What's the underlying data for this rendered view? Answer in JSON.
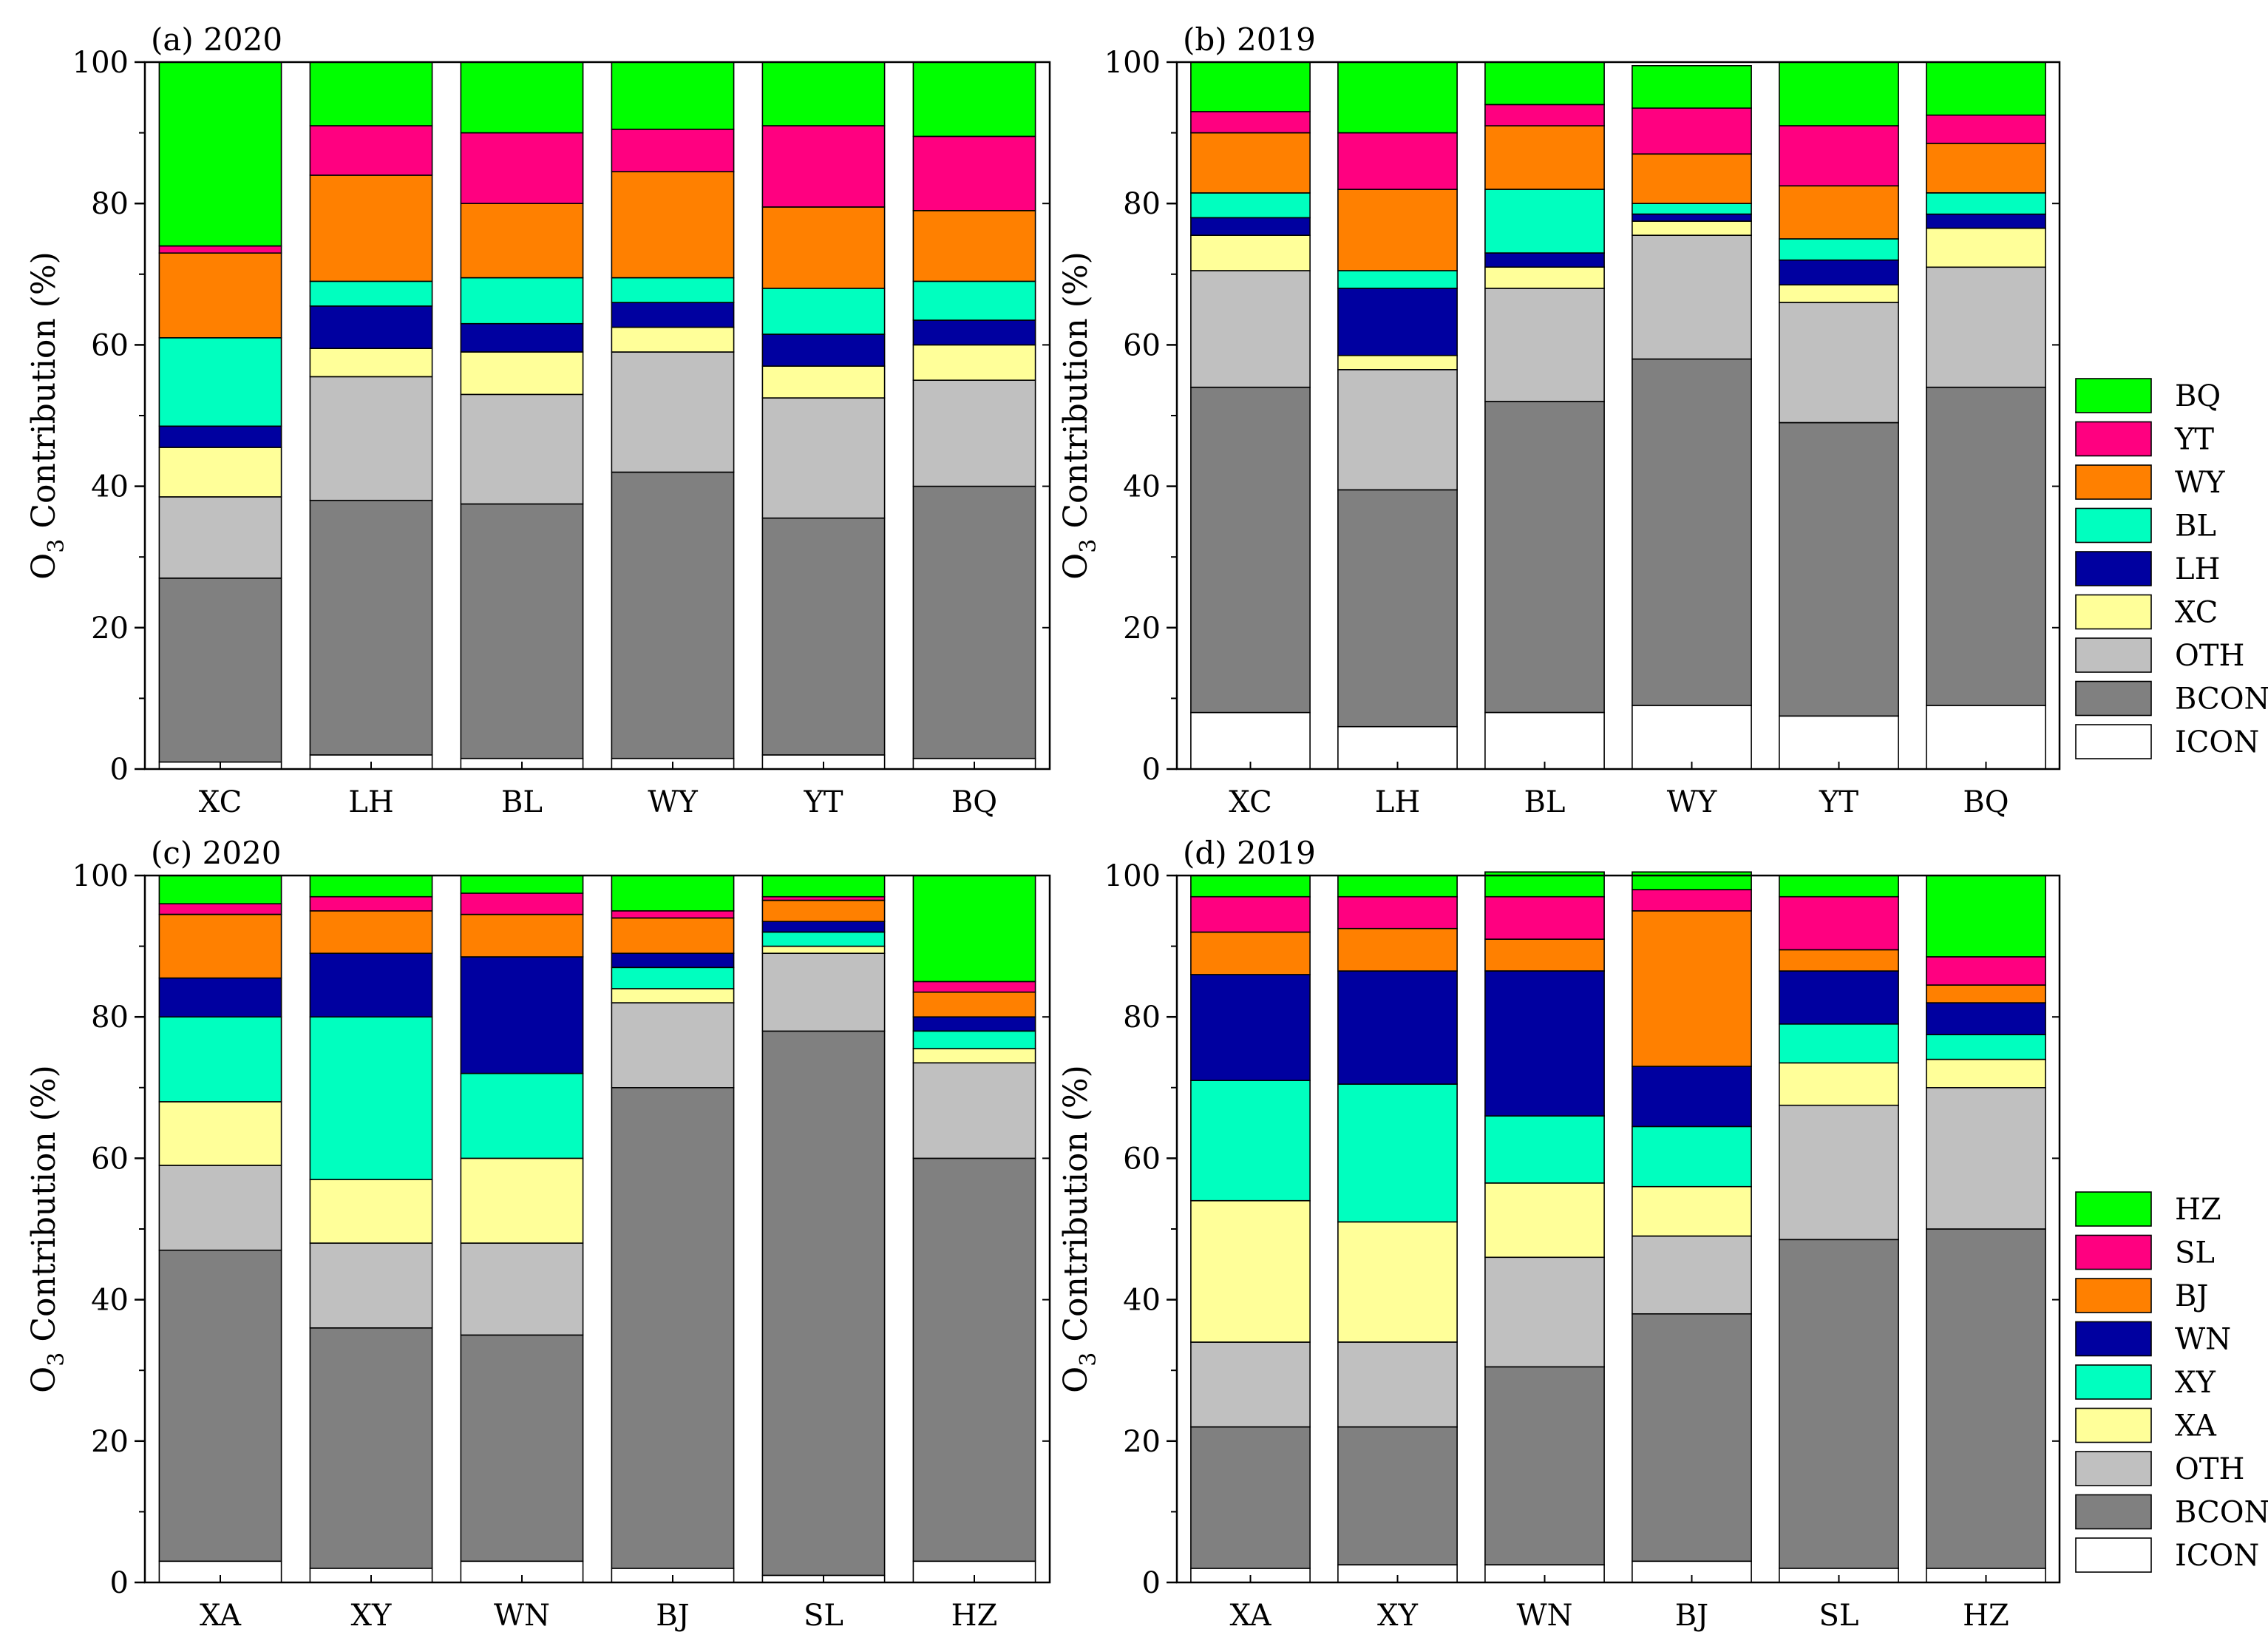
{
  "chart_data": [
    {
      "type": "bar",
      "stacked": true,
      "title": "(a) 2020",
      "ylabel": "O3 Contribution (%)",
      "ylabel_main": "O",
      "ylabel_sub": "3",
      "ylabel_rest": " Contribution (%)",
      "ylim": [
        0,
        100
      ],
      "yticks": [
        0,
        20,
        40,
        60,
        80,
        100
      ],
      "categories": [
        "XC",
        "LH",
        "BL",
        "WY",
        "YT",
        "BQ"
      ],
      "series": [
        {
          "name": "ICON",
          "color": "#FFFFFF",
          "values": [
            1,
            2,
            1.5,
            1.5,
            2,
            1.5
          ]
        },
        {
          "name": "BCON",
          "color": "#808080",
          "values": [
            26,
            36,
            36,
            40.5,
            33.5,
            38.5
          ]
        },
        {
          "name": "OTH",
          "color": "#C0C0C0",
          "values": [
            11.5,
            17.5,
            15.5,
            17,
            17,
            15
          ]
        },
        {
          "name": "XC",
          "color": "#FFFF99",
          "values": [
            7,
            4,
            6,
            3.5,
            4.5,
            5
          ]
        },
        {
          "name": "LH",
          "color": "#0000A0",
          "values": [
            3,
            6,
            4,
            3.5,
            4.5,
            3.5
          ]
        },
        {
          "name": "BL",
          "color": "#00FFBF",
          "values": [
            12.5,
            3.5,
            6.5,
            3.5,
            6.5,
            5.5
          ]
        },
        {
          "name": "WY",
          "color": "#FF8000",
          "values": [
            12,
            15,
            10.5,
            15,
            11.5,
            10
          ]
        },
        {
          "name": "YT",
          "color": "#FF0080",
          "values": [
            1,
            7,
            10,
            6,
            11.5,
            10.5
          ]
        },
        {
          "name": "BQ",
          "color": "#00FF00",
          "values": [
            26,
            9,
            10,
            9.5,
            9,
            10.5
          ]
        }
      ],
      "legend": {
        "position": "none",
        "entries": []
      }
    },
    {
      "type": "bar",
      "stacked": true,
      "title": "(b) 2019",
      "ylabel": "O3 Contribution (%)",
      "ylabel_main": "O",
      "ylabel_sub": "3",
      "ylabel_rest": " Contribution (%)",
      "ylim": [
        0,
        100
      ],
      "yticks": [
        0,
        20,
        40,
        60,
        80,
        100
      ],
      "categories": [
        "XC",
        "LH",
        "BL",
        "WY",
        "YT",
        "BQ"
      ],
      "series": [
        {
          "name": "ICON",
          "color": "#FFFFFF",
          "values": [
            8,
            6,
            8,
            9,
            7.5,
            9
          ]
        },
        {
          "name": "BCON",
          "color": "#808080",
          "values": [
            46,
            33.5,
            44,
            49,
            41.5,
            45
          ]
        },
        {
          "name": "OTH",
          "color": "#C0C0C0",
          "values": [
            16.5,
            17,
            16,
            17.5,
            17,
            17
          ]
        },
        {
          "name": "XC",
          "color": "#FFFF99",
          "values": [
            5,
            2,
            3,
            2,
            2.5,
            5.5
          ]
        },
        {
          "name": "LH",
          "color": "#0000A0",
          "values": [
            2.5,
            9.5,
            2,
            1,
            3.5,
            2
          ]
        },
        {
          "name": "BL",
          "color": "#00FFBF",
          "values": [
            3.5,
            2.5,
            9,
            1.5,
            3,
            3
          ]
        },
        {
          "name": "WY",
          "color": "#FF8000",
          "values": [
            8.5,
            11.5,
            9,
            7,
            7.5,
            7
          ]
        },
        {
          "name": "YT",
          "color": "#FF0080",
          "values": [
            3,
            8,
            3,
            6.5,
            8.5,
            4
          ]
        },
        {
          "name": "BQ",
          "color": "#00FF00",
          "values": [
            7,
            10,
            6,
            6,
            9,
            7.5
          ]
        }
      ],
      "legend": {
        "position": "right",
        "entries": [
          {
            "label": "BQ",
            "color": "#00FF00"
          },
          {
            "label": "YT",
            "color": "#FF0080"
          },
          {
            "label": "WY",
            "color": "#FF8000"
          },
          {
            "label": "BL",
            "color": "#00FFBF"
          },
          {
            "label": "LH",
            "color": "#0000A0"
          },
          {
            "label": "XC",
            "color": "#FFFF99"
          },
          {
            "label": "OTH",
            "color": "#C0C0C0"
          },
          {
            "label": "BCON",
            "color": "#808080"
          },
          {
            "label": "ICON",
            "color": "#FFFFFF"
          }
        ]
      }
    },
    {
      "type": "bar",
      "stacked": true,
      "title": "(c) 2020",
      "ylabel": "O3 Contribution (%)",
      "ylabel_main": "O",
      "ylabel_sub": "3",
      "ylabel_rest": " Contribution (%)",
      "ylim": [
        0,
        100
      ],
      "yticks": [
        0,
        20,
        40,
        60,
        80,
        100
      ],
      "categories": [
        "XA",
        "XY",
        "WN",
        "BJ",
        "SL",
        "HZ"
      ],
      "series": [
        {
          "name": "ICON",
          "color": "#FFFFFF",
          "values": [
            3,
            2,
            3,
            2,
            1,
            3
          ]
        },
        {
          "name": "BCON",
          "color": "#808080",
          "values": [
            44,
            34,
            32,
            68,
            77,
            57
          ]
        },
        {
          "name": "OTH",
          "color": "#C0C0C0",
          "values": [
            12,
            12,
            13,
            12,
            11,
            13.5
          ]
        },
        {
          "name": "XA",
          "color": "#FFFF99",
          "values": [
            9,
            9,
            12,
            2,
            1,
            2
          ]
        },
        {
          "name": "XY",
          "color": "#00FFBF",
          "values": [
            12,
            23,
            12,
            3,
            2,
            2.5
          ]
        },
        {
          "name": "WN",
          "color": "#0000A0",
          "values": [
            5.5,
            9,
            16.5,
            2,
            1.5,
            2
          ]
        },
        {
          "name": "BJ",
          "color": "#FF8000",
          "values": [
            9,
            6,
            6,
            5,
            3,
            3.5
          ]
        },
        {
          "name": "SL",
          "color": "#FF0080",
          "values": [
            1.5,
            2,
            3,
            1,
            0.5,
            1.5
          ]
        },
        {
          "name": "HZ",
          "color": "#00FF00",
          "values": [
            4,
            3,
            2.5,
            5,
            3,
            15
          ]
        }
      ],
      "legend": {
        "position": "none",
        "entries": []
      }
    },
    {
      "type": "bar",
      "stacked": true,
      "title": "(d) 2019",
      "ylabel": "O3 Contribution (%)",
      "ylabel_main": "O",
      "ylabel_sub": "3",
      "ylabel_rest": " Contribution (%)",
      "ylim": [
        0,
        100
      ],
      "yticks": [
        0,
        20,
        40,
        60,
        80,
        100
      ],
      "categories": [
        "XA",
        "XY",
        "WN",
        "BJ",
        "SL",
        "HZ"
      ],
      "series": [
        {
          "name": "ICON",
          "color": "#FFFFFF",
          "values": [
            2,
            2.5,
            2.5,
            3,
            2,
            2
          ]
        },
        {
          "name": "BCON",
          "color": "#808080",
          "values": [
            20,
            19.5,
            28,
            35,
            46.5,
            48
          ]
        },
        {
          "name": "OTH",
          "color": "#C0C0C0",
          "values": [
            12,
            12,
            15.5,
            11,
            19,
            20
          ]
        },
        {
          "name": "XA",
          "color": "#FFFF99",
          "values": [
            20,
            17,
            10.5,
            7,
            6,
            4
          ]
        },
        {
          "name": "XY",
          "color": "#00FFBF",
          "values": [
            17,
            19.5,
            9.5,
            8.5,
            5.5,
            3.5
          ]
        },
        {
          "name": "WN",
          "color": "#0000A0",
          "values": [
            15,
            16,
            20.5,
            8.5,
            7.5,
            4.5
          ]
        },
        {
          "name": "BJ",
          "color": "#FF8000",
          "values": [
            6,
            6,
            4.5,
            22,
            3,
            2.5
          ]
        },
        {
          "name": "SL",
          "color": "#FF0080",
          "values": [
            5,
            4.5,
            6,
            3,
            7.5,
            4
          ]
        },
        {
          "name": "HZ",
          "color": "#00FF00",
          "values": [
            3,
            3,
            3.5,
            2.5,
            3,
            11.5
          ]
        }
      ],
      "legend": {
        "position": "right",
        "entries": [
          {
            "label": "HZ",
            "color": "#00FF00"
          },
          {
            "label": "SL",
            "color": "#FF0080"
          },
          {
            "label": "BJ",
            "color": "#FF8000"
          },
          {
            "label": "WN",
            "color": "#0000A0"
          },
          {
            "label": "XY",
            "color": "#00FFBF"
          },
          {
            "label": "XA",
            "color": "#FFFF99"
          },
          {
            "label": "OTH",
            "color": "#C0C0C0"
          },
          {
            "label": "BCON",
            "color": "#808080"
          },
          {
            "label": "ICON",
            "color": "#FFFFFF"
          }
        ]
      }
    }
  ]
}
